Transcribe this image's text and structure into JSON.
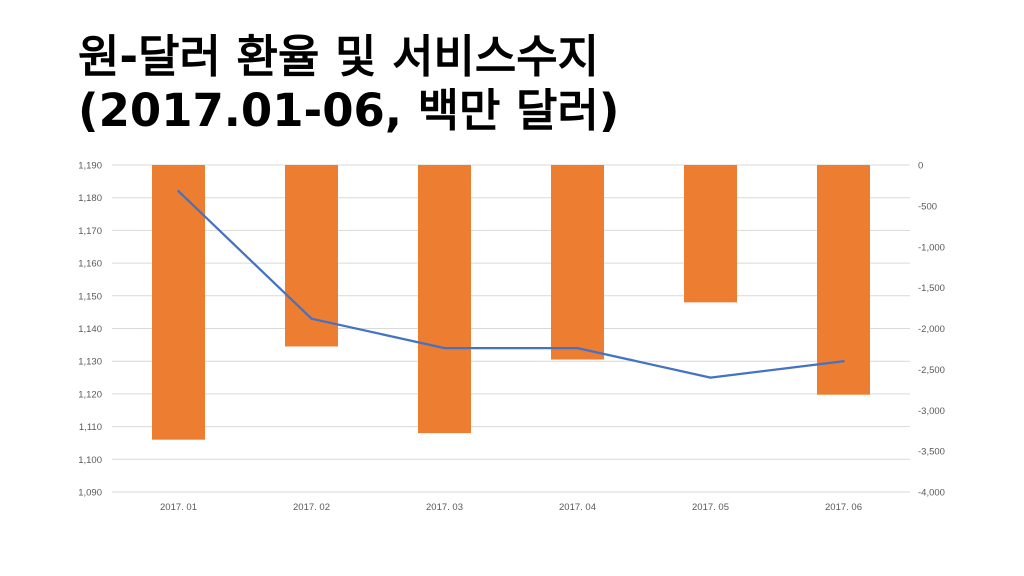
{
  "title": {
    "line1": "원-달러 환율 및 서비스수지",
    "line2": "(2017.01-06, 백만 달러)"
  },
  "chart_data": {
    "type": "bar+line",
    "categories": [
      "2017. 01",
      "2017. 02",
      "2017. 03",
      "2017. 04",
      "2017. 05",
      "2017. 06"
    ],
    "series": [
      {
        "name": "서비스수지",
        "type": "bar",
        "axis": "right",
        "color": "#ED7D31",
        "values": [
          -3360,
          -2220,
          -3280,
          -2380,
          -1680,
          -2810
        ]
      },
      {
        "name": "원-달러 환율",
        "type": "line",
        "axis": "left",
        "color": "#4472C4",
        "values": [
          1182,
          1143,
          1134,
          1134,
          1125,
          1130
        ]
      }
    ],
    "left_axis": {
      "ylim": [
        1090,
        1190
      ],
      "ticks": [
        1190,
        1180,
        1170,
        1160,
        1150,
        1140,
        1130,
        1120,
        1110,
        1100,
        1090
      ],
      "tick_labels": [
        "1,190",
        "1,180",
        "1,170",
        "1,160",
        "1,150",
        "1,140",
        "1,130",
        "1,120",
        "1,110",
        "1,100",
        "1,090"
      ]
    },
    "right_axis": {
      "ylim": [
        -4000,
        0
      ],
      "ticks": [
        0,
        -500,
        -1000,
        -1500,
        -2000,
        -2500,
        -3000,
        -3500,
        -4000
      ],
      "tick_labels": [
        "0",
        "-500",
        "-1,000",
        "-1,500",
        "-2,000",
        "-2,500",
        "-3,000",
        "-3,500",
        "-4,000"
      ]
    },
    "grid": true,
    "gridline_color": "#D9D9D9"
  }
}
